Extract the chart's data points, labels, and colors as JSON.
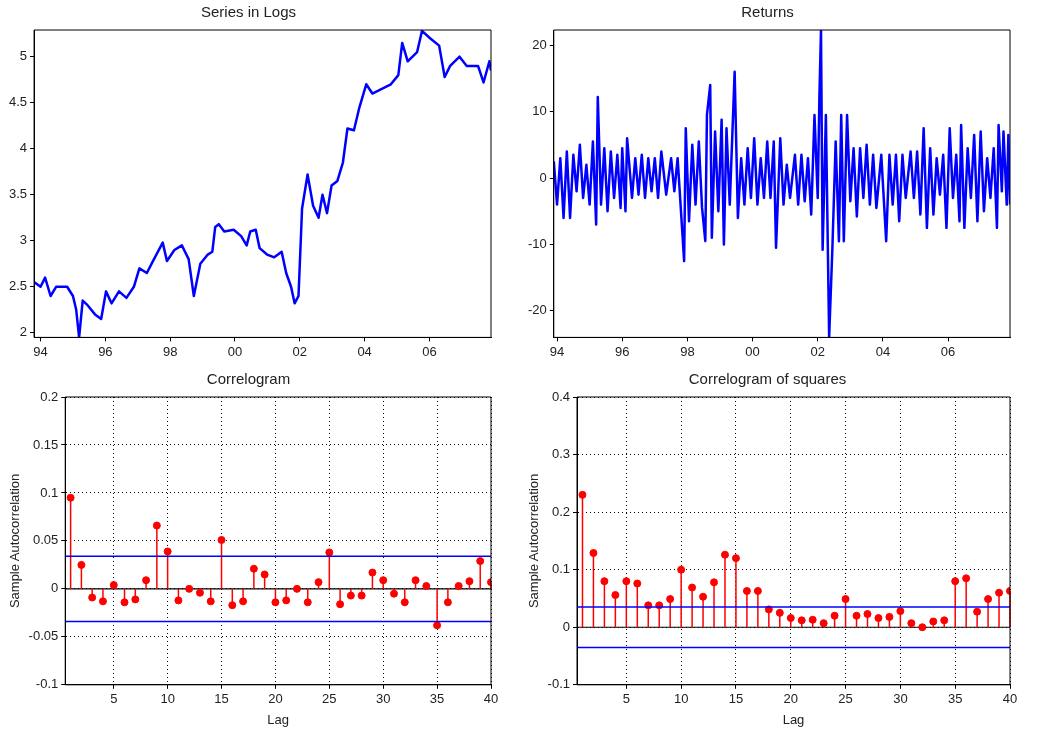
{
  "chart_data": [
    {
      "type": "line",
      "title": "Series in Logs",
      "color": "#0000ff",
      "x": [
        1993.81,
        1994.0,
        1994.14,
        1994.31,
        1994.48,
        1994.82,
        1995.0,
        1995.1,
        1995.19,
        1995.3,
        1995.45,
        1995.68,
        1995.87,
        1996.02,
        1996.19,
        1996.42,
        1996.65,
        1996.88,
        1997.05,
        1997.28,
        1997.5,
        1997.77,
        1997.9,
        1998.13,
        1998.36,
        1998.57,
        1998.73,
        1998.93,
        1999.16,
        1999.3,
        1999.39,
        1999.5,
        1999.67,
        1999.96,
        2000.19,
        2000.36,
        2000.47,
        2000.64,
        2000.76,
        2000.99,
        2001.21,
        2001.44,
        2001.58,
        2001.73,
        2001.84,
        2001.96,
        2002.07,
        2002.24,
        2002.41,
        2002.58,
        2002.7,
        2002.84,
        2002.98,
        2003.16,
        2003.33,
        2003.47,
        2003.67,
        2003.84,
        2004.05,
        2004.24,
        2004.53,
        2004.81,
        2005.04,
        2005.16,
        2005.33,
        2005.62,
        2005.77,
        2006.02,
        2006.3,
        2006.47,
        2006.64,
        2006.93,
        2007.15,
        2007.5,
        2007.67,
        2007.85,
        2007.9
      ],
      "values": [
        2.55,
        2.5,
        2.6,
        2.4,
        2.5,
        2.5,
        2.4,
        2.25,
        1.95,
        2.35,
        2.3,
        2.2,
        2.15,
        2.45,
        2.32,
        2.45,
        2.38,
        2.5,
        2.7,
        2.65,
        2.8,
        2.98,
        2.78,
        2.9,
        2.95,
        2.8,
        2.4,
        2.75,
        2.85,
        2.88,
        3.15,
        3.18,
        3.1,
        3.12,
        3.05,
        2.95,
        3.1,
        3.12,
        2.92,
        2.85,
        2.82,
        2.88,
        2.65,
        2.5,
        2.32,
        2.4,
        3.35,
        3.72,
        3.38,
        3.25,
        3.5,
        3.3,
        3.6,
        3.65,
        3.85,
        4.22,
        4.2,
        4.45,
        4.7,
        4.6,
        4.65,
        4.7,
        4.8,
        5.15,
        4.95,
        5.05,
        5.28,
        5.2,
        5.12,
        4.78,
        4.9,
        5.0,
        4.9,
        4.9,
        4.72,
        4.95,
        4.85
      ],
      "xlim": [
        1993.8,
        2007.9
      ],
      "xticks": [
        {
          "value": 1994,
          "label": "94"
        },
        {
          "value": 1996,
          "label": "96"
        },
        {
          "value": 1998,
          "label": "98"
        },
        {
          "value": 2000,
          "label": "00"
        },
        {
          "value": 2002,
          "label": "02"
        },
        {
          "value": 2004,
          "label": "04"
        },
        {
          "value": 2006,
          "label": "06"
        }
      ],
      "ylim": [
        1.95,
        5.29
      ],
      "yticks": [
        2,
        2.5,
        3,
        3.5,
        4,
        4.5,
        5
      ]
    },
    {
      "type": "line",
      "title": "Returns",
      "color": "#0000ff",
      "x": [
        1993.9,
        1994.0,
        1994.1,
        1994.2,
        1994.3,
        1994.4,
        1994.5,
        1994.6,
        1994.7,
        1994.8,
        1994.9,
        1995.0,
        1995.1,
        1995.2,
        1995.25,
        1995.35,
        1995.45,
        1995.55,
        1995.65,
        1995.75,
        1995.85,
        1995.95,
        1996.0,
        1996.1,
        1996.15,
        1996.3,
        1996.4,
        1996.5,
        1996.6,
        1996.7,
        1996.8,
        1996.9,
        1997.0,
        1997.1,
        1997.2,
        1997.35,
        1997.5,
        1997.6,
        1997.7,
        1997.9,
        1997.95,
        1998.05,
        1998.15,
        1998.25,
        1998.35,
        1998.45,
        1998.55,
        1998.6,
        1998.7,
        1998.75,
        1998.85,
        1998.95,
        1999.05,
        1999.12,
        1999.2,
        1999.3,
        1999.45,
        1999.55,
        1999.65,
        1999.75,
        1999.85,
        1999.95,
        2000.05,
        2000.15,
        2000.25,
        2000.35,
        2000.45,
        2000.55,
        2000.65,
        2000.72,
        2000.85,
        2000.95,
        2001.05,
        2001.15,
        2001.3,
        2001.4,
        2001.5,
        2001.6,
        2001.7,
        2001.8,
        2001.9,
        2002.0,
        2002.05,
        2002.1,
        2002.15,
        2002.25,
        2002.35,
        2002.45,
        2002.55,
        2002.65,
        2002.72,
        2002.8,
        2002.9,
        2003.0,
        2003.1,
        2003.2,
        2003.3,
        2003.4,
        2003.5,
        2003.6,
        2003.7,
        2003.8,
        2003.95,
        2004.1,
        2004.2,
        2004.3,
        2004.4,
        2004.5,
        2004.6,
        2004.7,
        2004.85,
        2004.95,
        2005.05,
        2005.15,
        2005.25,
        2005.35,
        2005.45,
        2005.55,
        2005.65,
        2005.75,
        2005.85,
        2005.95,
        2006.05,
        2006.15,
        2006.25,
        2006.35,
        2006.4,
        2006.5,
        2006.6,
        2006.7,
        2006.8,
        2006.9,
        2007.0,
        2007.1,
        2007.2,
        2007.3,
        2007.4,
        2007.5,
        2007.55,
        2007.65,
        2007.7,
        2007.8,
        2007.85,
        2007.9
      ],
      "values": [
        2.5,
        -4,
        3,
        -6,
        4,
        -6,
        3.5,
        -2,
        5,
        -3,
        2,
        -4,
        5.5,
        -7,
        12.2,
        -4,
        4.5,
        -5,
        4,
        -3,
        3.5,
        -4.5,
        4.5,
        -5,
        6,
        -3,
        3,
        -2.5,
        3.5,
        -3,
        3,
        -2,
        3,
        -3,
        4,
        -2.5,
        3,
        -2,
        3,
        -12.5,
        7.5,
        -6.5,
        5,
        -4,
        5.5,
        -4.5,
        -9.5,
        9.5,
        14,
        -9,
        7,
        -5,
        8.8,
        -10,
        7.5,
        -4,
        16,
        -6,
        3,
        -4,
        4.5,
        -3,
        6,
        -4,
        3,
        -3,
        5.5,
        -3,
        5.5,
        -10.5,
        6,
        -4,
        2,
        -3,
        3.5,
        -4,
        3.5,
        -3.5,
        3,
        -5.5,
        9.5,
        -3,
        12,
        22.3,
        -10.8,
        9.5,
        -24,
        -10.5,
        5.5,
        -9.5,
        9.5,
        -9.5,
        9.5,
        -3.5,
        4.5,
        -5.8,
        4.5,
        -3,
        5,
        -4,
        3.5,
        -4.5,
        3.5,
        -9.5,
        3.5,
        -4,
        3.5,
        -6.5,
        3.5,
        -3,
        4,
        -3,
        4,
        -5.5,
        7.5,
        -7.5,
        4.5,
        -5.5,
        3,
        -2.5,
        3.5,
        -7.5,
        7.5,
        -3,
        3.5,
        -6.5,
        8,
        -7.5,
        4.5,
        -3,
        6.5,
        -6.5,
        7,
        -5,
        3,
        -3,
        4.5,
        -7.5,
        8,
        -2,
        7,
        -4,
        6.5,
        -4
      ],
      "xlim": [
        1993.9,
        2007.9
      ],
      "xticks": [
        {
          "value": 1994,
          "label": "94"
        },
        {
          "value": 1996,
          "label": "96"
        },
        {
          "value": 1998,
          "label": "98"
        },
        {
          "value": 2000,
          "label": "00"
        },
        {
          "value": 2002,
          "label": "02"
        },
        {
          "value": 2004,
          "label": "04"
        },
        {
          "value": 2006,
          "label": "06"
        }
      ],
      "ylim": [
        -24,
        22.3
      ],
      "yticks": [
        -20,
        -10,
        0,
        10,
        20
      ]
    },
    {
      "type": "lollipop",
      "title": "Correlogram",
      "xlabel": "Lag",
      "ylabel": "Sample Autocorrelation",
      "color": "#ff0000",
      "marker": "circle",
      "grid": true,
      "x": [
        1,
        2,
        3,
        4,
        5,
        6,
        7,
        8,
        9,
        10,
        11,
        12,
        13,
        14,
        15,
        16,
        17,
        18,
        19,
        20,
        21,
        22,
        23,
        24,
        25,
        26,
        27,
        28,
        29,
        30,
        31,
        32,
        33,
        34,
        35,
        36,
        37,
        38,
        39,
        40
      ],
      "values": [
        0.095,
        0.025,
        -0.009,
        -0.013,
        0.004,
        -0.014,
        -0.011,
        0.009,
        0.066,
        0.039,
        -0.012,
        0,
        -0.004,
        -0.013,
        0.051,
        -0.017,
        -0.013,
        0.021,
        0.015,
        -0.014,
        -0.012,
        0,
        -0.014,
        0.007,
        0.038,
        -0.016,
        -0.007,
        -0.007,
        0.017,
        0.009,
        -0.005,
        -0.014,
        0.009,
        0.003,
        -0.038,
        -0.014,
        0.003,
        0.008,
        0.029,
        0.007
      ],
      "xlim": [
        0.5,
        40
      ],
      "xticks": [
        5,
        10,
        15,
        20,
        25,
        30,
        35,
        40
      ],
      "ylim": [
        -0.1,
        0.2
      ],
      "yticks": [
        -0.1,
        -0.05,
        0,
        0.05,
        0.1,
        0.15,
        0.2
      ],
      "ref_lines": [
        {
          "axis": "y",
          "value": 0.034,
          "color": "#0000ff"
        },
        {
          "axis": "y",
          "value": -0.034,
          "color": "#0000ff"
        }
      ]
    },
    {
      "type": "lollipop",
      "title": "Correlogram of squares",
      "xlabel": "Lag",
      "ylabel": "Sample Autocorrelation",
      "color": "#ff0000",
      "marker": "circle",
      "grid": true,
      "x": [
        1,
        2,
        3,
        4,
        5,
        6,
        7,
        8,
        9,
        10,
        11,
        12,
        13,
        14,
        15,
        16,
        17,
        18,
        19,
        20,
        21,
        22,
        23,
        24,
        25,
        26,
        27,
        28,
        29,
        30,
        31,
        32,
        33,
        34,
        35,
        36,
        37,
        38,
        39,
        40
      ],
      "values": [
        0.23,
        0.129,
        0.08,
        0.056,
        0.08,
        0.076,
        0.038,
        0.038,
        0.049,
        0.1,
        0.069,
        0.053,
        0.078,
        0.126,
        0.12,
        0.063,
        0.063,
        0.031,
        0.025,
        0.016,
        0.012,
        0.013,
        0.007,
        0.02,
        0.049,
        0.02,
        0.023,
        0.016,
        0.018,
        0.028,
        0.007,
        0,
        0.01,
        0.012,
        0.08,
        0.085,
        0.027,
        0.049,
        0.06,
        0.063
      ],
      "xlim": [
        0.5,
        40
      ],
      "xticks": [
        5,
        10,
        15,
        20,
        25,
        30,
        35,
        40
      ],
      "ylim": [
        -0.1,
        0.4
      ],
      "yticks": [
        -0.1,
        0,
        0.1,
        0.2,
        0.3,
        0.4
      ],
      "ref_lines": [
        {
          "axis": "y",
          "value": 0.035,
          "color": "#0000ff"
        },
        {
          "axis": "y",
          "value": -0.035,
          "color": "#0000ff"
        }
      ]
    }
  ]
}
